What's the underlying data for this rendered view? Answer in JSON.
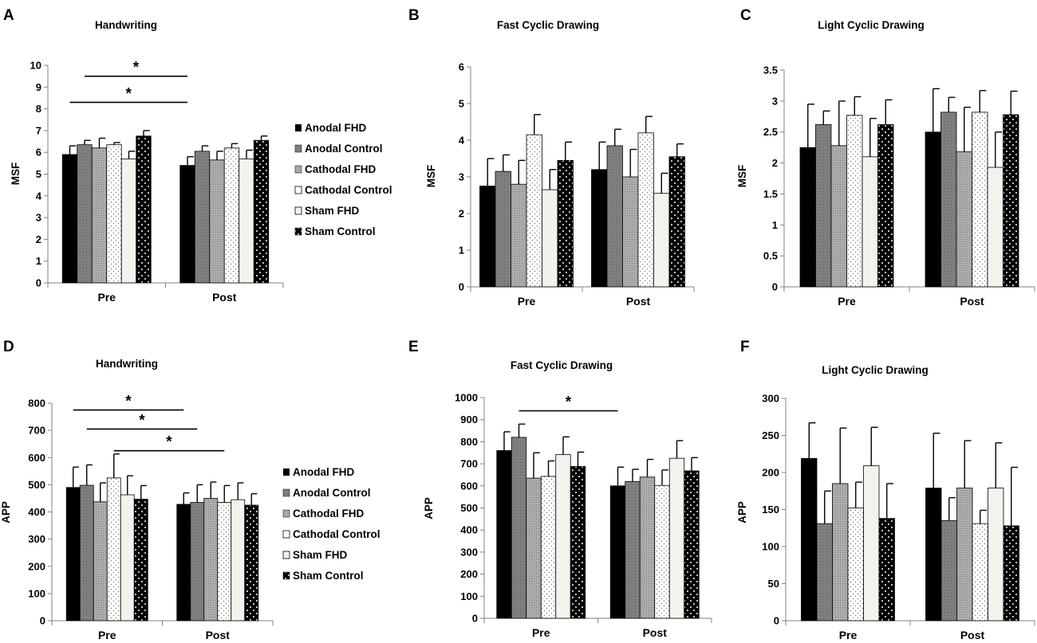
{
  "figure": {
    "legend_entries": [
      "Anodal FHD",
      "Anodal Control",
      "Cathodal FHD",
      "Cathodal Control",
      "Sham FHD",
      "Sham Control"
    ],
    "series_colors": {
      "anodal_fhd": "#000000",
      "anodal_control": "#7f7f7f",
      "cathodal_fhd": "#a6a6a6",
      "cathodal_control": "#ffffff",
      "sham_fhd": "#f4f2ec",
      "sham_control": "#000000"
    }
  },
  "chart_data": [
    {
      "panel": "A",
      "type": "bar",
      "title": "Handwriting",
      "ylabel": "MSF",
      "categories": [
        "Pre",
        "Post"
      ],
      "ylim": [
        0,
        10
      ],
      "yticks": [
        "0",
        "1",
        "2",
        "3",
        "4",
        "5",
        "6",
        "7",
        "8",
        "9",
        "10"
      ],
      "series": [
        {
          "name": "Anodal FHD",
          "values": [
            5.9,
            5.4
          ],
          "errors": [
            0.4,
            0.4
          ]
        },
        {
          "name": "Anodal Control",
          "values": [
            6.35,
            6.05
          ],
          "errors": [
            0.2,
            0.25
          ]
        },
        {
          "name": "Cathodal FHD",
          "values": [
            6.2,
            5.65
          ],
          "errors": [
            0.45,
            0.4
          ]
        },
        {
          "name": "Cathodal Control",
          "values": [
            6.35,
            6.2
          ],
          "errors": [
            0.1,
            0.2
          ]
        },
        {
          "name": "Sham FHD",
          "values": [
            5.7,
            5.7
          ],
          "errors": [
            0.35,
            0.4
          ]
        },
        {
          "name": "Sham Control",
          "values": [
            6.75,
            6.55
          ],
          "errors": [
            0.25,
            0.2
          ]
        }
      ],
      "significance": [
        {
          "from": [
            "Pre",
            "Anodal Control"
          ],
          "to": [
            "Post",
            "Anodal FHD"
          ],
          "label": "*",
          "y": 9.5
        },
        {
          "from": [
            "Pre",
            "Anodal FHD"
          ],
          "to": [
            "Post",
            "Anodal FHD"
          ],
          "label": "*",
          "y": 8.3
        }
      ]
    },
    {
      "panel": "B",
      "type": "bar",
      "title": "Fast Cyclic Drawing",
      "ylabel": "MSF",
      "categories": [
        "Pre",
        "Post"
      ],
      "ylim": [
        0,
        6
      ],
      "yticks": [
        "0",
        "1",
        "2",
        "3",
        "4",
        "5",
        "6"
      ],
      "series": [
        {
          "name": "Anodal FHD",
          "values": [
            2.75,
            3.2
          ],
          "errors": [
            0.75,
            0.75
          ]
        },
        {
          "name": "Anodal Control",
          "values": [
            3.15,
            3.85
          ],
          "errors": [
            0.45,
            0.45
          ]
        },
        {
          "name": "Cathodal FHD",
          "values": [
            2.8,
            3.0
          ],
          "errors": [
            0.65,
            0.75
          ]
        },
        {
          "name": "Cathodal Control",
          "values": [
            4.15,
            4.2
          ],
          "errors": [
            0.55,
            0.45
          ]
        },
        {
          "name": "Sham FHD",
          "values": [
            2.65,
            2.55
          ],
          "errors": [
            0.55,
            0.55
          ]
        },
        {
          "name": "Sham Control",
          "values": [
            3.45,
            3.55
          ],
          "errors": [
            0.5,
            0.35
          ]
        }
      ],
      "significance": []
    },
    {
      "panel": "C",
      "type": "bar",
      "title": "Light Cyclic Drawing",
      "ylabel": "MSF",
      "categories": [
        "Pre",
        "Post"
      ],
      "ylim": [
        0,
        3.5
      ],
      "yticks": [
        "0",
        "0.5",
        "1",
        "1.5",
        "2",
        "2.5",
        "3",
        "3.5"
      ],
      "series": [
        {
          "name": "Anodal FHD",
          "values": [
            2.25,
            2.5
          ],
          "errors": [
            0.7,
            0.7
          ]
        },
        {
          "name": "Anodal Control",
          "values": [
            2.62,
            2.82
          ],
          "errors": [
            0.22,
            0.24
          ]
        },
        {
          "name": "Cathodal FHD",
          "values": [
            2.28,
            2.18
          ],
          "errors": [
            0.72,
            0.72
          ]
        },
        {
          "name": "Cathodal Control",
          "values": [
            2.77,
            2.82
          ],
          "errors": [
            0.3,
            0.35
          ]
        },
        {
          "name": "Sham FHD",
          "values": [
            2.1,
            1.93
          ],
          "errors": [
            0.62,
            0.57
          ]
        },
        {
          "name": "Sham Control",
          "values": [
            2.62,
            2.78
          ],
          "errors": [
            0.4,
            0.38
          ]
        }
      ],
      "significance": []
    },
    {
      "panel": "D",
      "type": "bar",
      "title": "Handwriting",
      "ylabel": "APP",
      "categories": [
        "Pre",
        "Post"
      ],
      "ylim": [
        0,
        800
      ],
      "yticks": [
        "0",
        "100",
        "200",
        "300",
        "400",
        "500",
        "600",
        "700",
        "800"
      ],
      "series": [
        {
          "name": "Anodal FHD",
          "values": [
            490,
            428
          ],
          "errors": [
            75,
            42
          ]
        },
        {
          "name": "Anodal Control",
          "values": [
            498,
            435
          ],
          "errors": [
            75,
            65
          ]
        },
        {
          "name": "Cathodal FHD",
          "values": [
            437,
            450
          ],
          "errors": [
            70,
            60
          ]
        },
        {
          "name": "Cathodal Control",
          "values": [
            525,
            435
          ],
          "errors": [
            88,
            62
          ]
        },
        {
          "name": "Sham FHD",
          "values": [
            463,
            445
          ],
          "errors": [
            70,
            62
          ]
        },
        {
          "name": "Sham Control",
          "values": [
            447,
            425
          ],
          "errors": [
            50,
            42
          ]
        }
      ],
      "significance": [
        {
          "from": [
            "Pre",
            "Anodal FHD"
          ],
          "to": [
            "Post",
            "Anodal FHD"
          ],
          "label": "*",
          "y": 775
        },
        {
          "from": [
            "Pre",
            "Anodal Control"
          ],
          "to": [
            "Post",
            "Anodal Control"
          ],
          "label": "*",
          "y": 705
        },
        {
          "from": [
            "Pre",
            "Cathodal Control"
          ],
          "to": [
            "Post",
            "Cathodal Control"
          ],
          "label": "*",
          "y": 625
        }
      ]
    },
    {
      "panel": "E",
      "type": "bar",
      "title": "Fast Cyclic Drawing",
      "ylabel": "APP",
      "categories": [
        "Pre",
        "Post"
      ],
      "ylim": [
        0,
        1000
      ],
      "yticks": [
        "0",
        "100",
        "200",
        "300",
        "400",
        "500",
        "600",
        "700",
        "800",
        "900",
        "1000"
      ],
      "series": [
        {
          "name": "Anodal FHD",
          "values": [
            760,
            600
          ],
          "errors": [
            85,
            85
          ]
        },
        {
          "name": "Anodal Control",
          "values": [
            820,
            620
          ],
          "errors": [
            60,
            55
          ]
        },
        {
          "name": "Cathodal FHD",
          "values": [
            635,
            640
          ],
          "errors": [
            115,
            80
          ]
        },
        {
          "name": "Cathodal Control",
          "values": [
            643,
            602
          ],
          "errors": [
            70,
            70
          ]
        },
        {
          "name": "Sham FHD",
          "values": [
            742,
            725
          ],
          "errors": [
            80,
            80
          ]
        },
        {
          "name": "Sham Control",
          "values": [
            688,
            668
          ],
          "errors": [
            65,
            60
          ]
        }
      ],
      "significance": [
        {
          "from": [
            "Pre",
            "Anodal Control"
          ],
          "to": [
            "Post",
            "Anodal FHD"
          ],
          "label": "*",
          "y": 940
        }
      ]
    },
    {
      "panel": "F",
      "type": "bar",
      "title": "Light Cyclic Drawing",
      "ylabel": "APP",
      "categories": [
        "Pre",
        "Post"
      ],
      "ylim": [
        0,
        300
      ],
      "yticks": [
        "0",
        "50",
        "100",
        "150",
        "200",
        "250",
        "300"
      ],
      "series": [
        {
          "name": "Anodal FHD",
          "values": [
            219,
            179
          ],
          "errors": [
            48,
            74
          ]
        },
        {
          "name": "Anodal Control",
          "values": [
            131,
            135
          ],
          "errors": [
            44,
            31
          ]
        },
        {
          "name": "Cathodal FHD",
          "values": [
            185,
            179
          ],
          "errors": [
            75,
            64
          ]
        },
        {
          "name": "Cathodal Control",
          "values": [
            152,
            131
          ],
          "errors": [
            35,
            18
          ]
        },
        {
          "name": "Sham FHD",
          "values": [
            209,
            179
          ],
          "errors": [
            52,
            61
          ]
        },
        {
          "name": "Sham Control",
          "values": [
            138,
            128
          ],
          "errors": [
            47,
            79
          ]
        }
      ],
      "significance": []
    }
  ]
}
